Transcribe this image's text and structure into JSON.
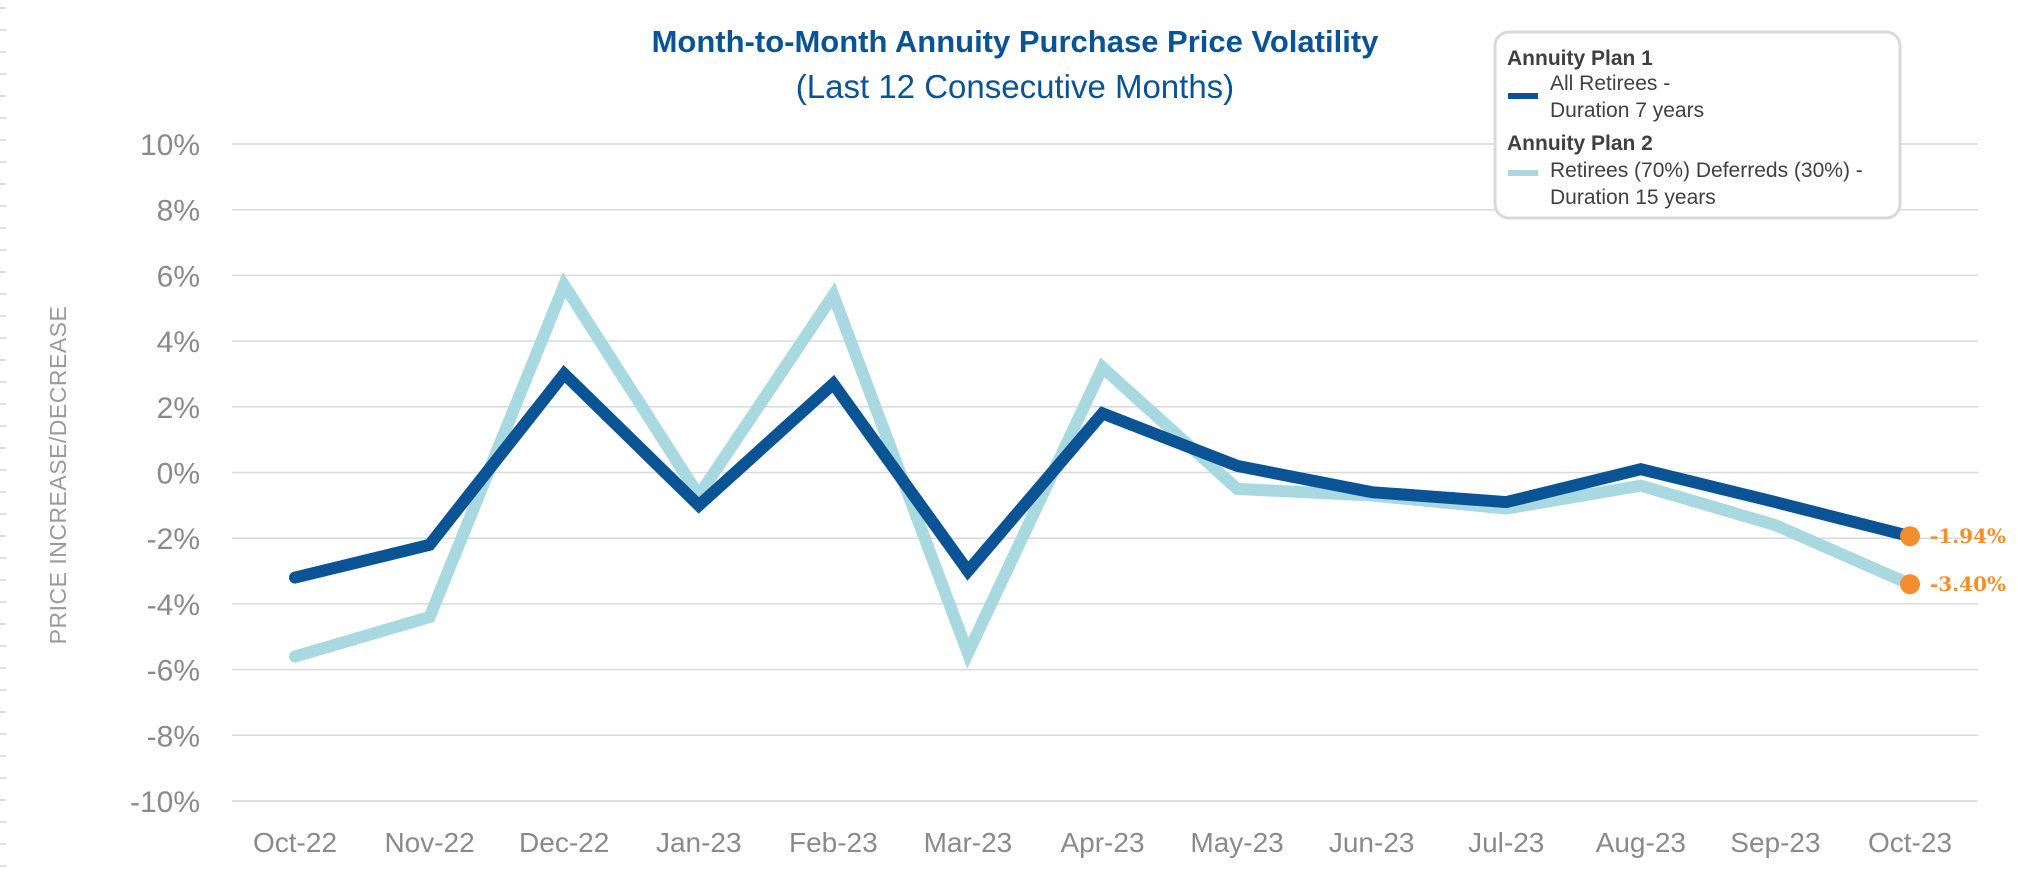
{
  "colors": {
    "plan1": "#0a5394",
    "plan2": "#a8d8e0",
    "marker": "#f28e2b",
    "title": "#0a5394"
  },
  "chart_data": {
    "type": "line",
    "title": "Month-to-Month Annuity Purchase Price Volatility",
    "subtitle": "(Last 12 Consecutive Months)",
    "xlabel": "",
    "ylabel": "PRICE INCREASE/DECREASE",
    "ylim": [
      -10,
      10
    ],
    "yticks": [
      10,
      8,
      6,
      4,
      2,
      0,
      -2,
      -4,
      -6,
      -8,
      -10
    ],
    "ytick_labels": [
      "10%",
      "8%",
      "6%",
      "4%",
      "2%",
      "0%",
      "-2%",
      "-4%",
      "-6%",
      "-8%",
      "-10%"
    ],
    "categories": [
      "Oct-22",
      "Nov-22",
      "Dec-22",
      "Jan-23",
      "Feb-23",
      "Mar-23",
      "Apr-23",
      "May-23",
      "Jun-23",
      "Jul-23",
      "Aug-23",
      "Sep-23",
      "Oct-23"
    ],
    "grid": true,
    "legend_position": "top-right",
    "series": [
      {
        "name": "Annuity Plan 1",
        "description_line1": "All Retirees -",
        "description_line2": "Duration 7 years",
        "values": [
          -3.2,
          -2.2,
          3.0,
          -1.0,
          2.7,
          -3.0,
          1.8,
          0.2,
          -0.6,
          -0.9,
          0.1,
          -0.9,
          -1.94
        ],
        "end_label": "-1.94%"
      },
      {
        "name": "Annuity Plan 2",
        "description_line1": "Retirees (70%) Deferreds (30%) -",
        "description_line2": "Duration 15 years",
        "values": [
          -5.6,
          -4.4,
          5.7,
          -0.7,
          5.4,
          -5.5,
          3.2,
          -0.5,
          -0.7,
          -1.1,
          -0.4,
          -1.6,
          -3.4
        ],
        "end_label": "-3.40%"
      }
    ]
  }
}
